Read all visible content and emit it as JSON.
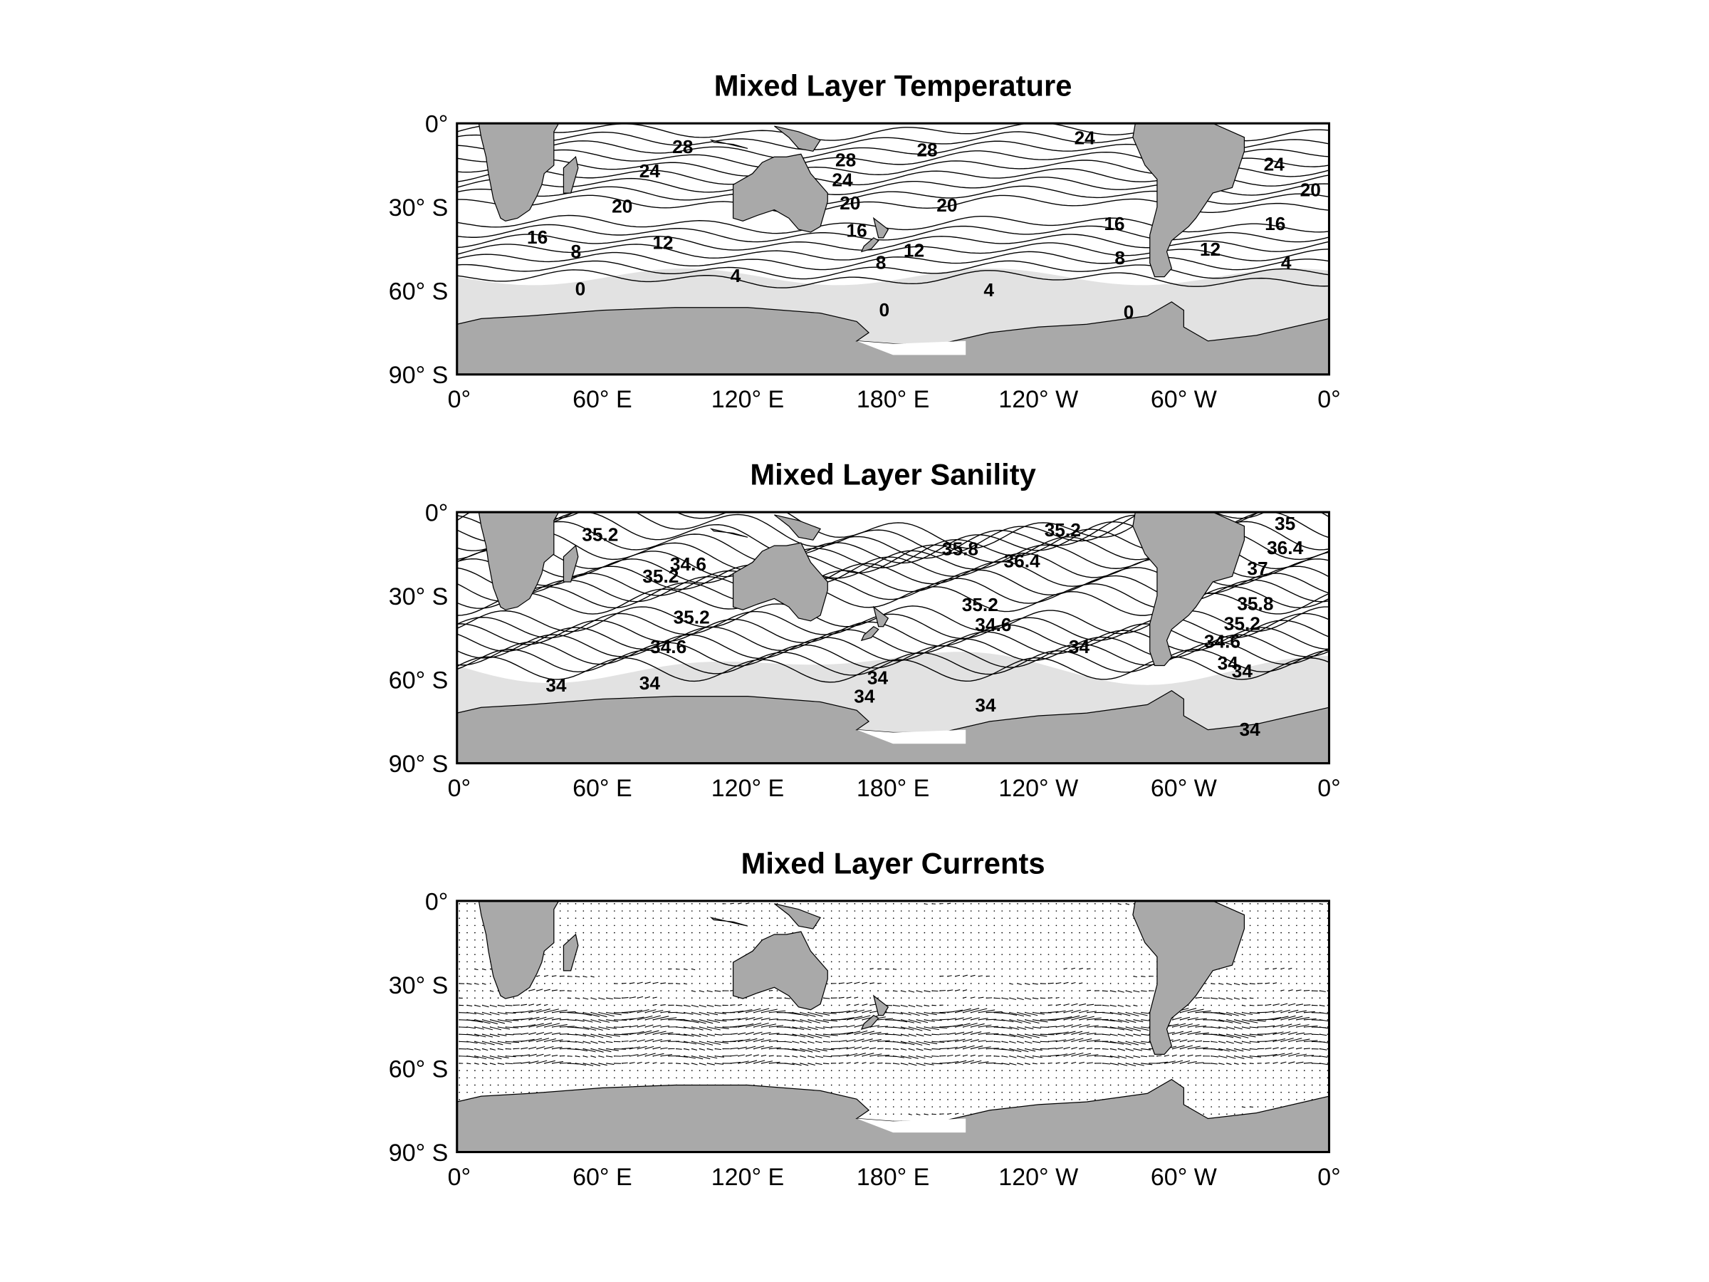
{
  "figure": {
    "yticks": [
      "0°",
      "30° S",
      "60° S",
      "90° S"
    ],
    "xticks": [
      "0°",
      "60° E",
      "120° E",
      "180° E",
      "120° W",
      "60° W",
      "0°"
    ],
    "panels": [
      {
        "title": "Mixed Layer Temperature",
        "contour_labels": [
          "28",
          "24",
          "20",
          "16",
          "8",
          "12",
          "4",
          "0",
          "28",
          "24",
          "20",
          "16",
          "8",
          "12",
          "28",
          "20",
          "0",
          "4",
          "16",
          "8",
          "0",
          "24",
          "24",
          "20",
          "16",
          "12",
          "4"
        ]
      },
      {
        "title": "Mixed Layer Sanility",
        "contour_labels": [
          "35.2",
          "34.6",
          "35.2",
          "35.2",
          "34.6",
          "34",
          "34",
          "35.8",
          "36.4",
          "35.2",
          "35.2",
          "34.6",
          "34",
          "34",
          "34",
          "34",
          "35",
          "36.4",
          "37",
          "35.8",
          "35.2",
          "34.6",
          "34",
          "34",
          "34"
        ]
      },
      {
        "title": "Mixed Layer Currents"
      }
    ]
  }
}
